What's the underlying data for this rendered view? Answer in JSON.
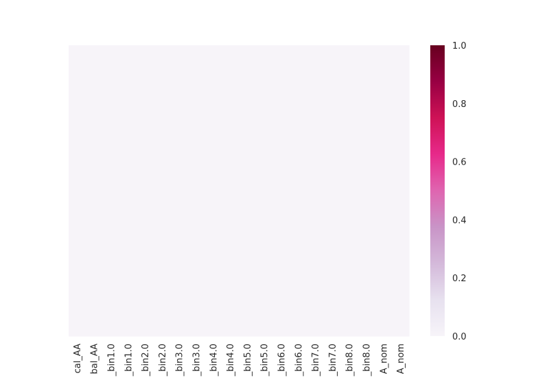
{
  "chart_data": {
    "type": "heatmap",
    "title": "",
    "xlabel": "",
    "ylabel": "",
    "x_tick_labels": [
      "cal_AA",
      "bal_AA",
      "_bin1.0",
      "_bin1.0",
      "_bin2.0",
      "_bin2.0",
      "_bin3.0",
      "_bin3.0",
      "_bin4.0",
      "_bin4.0",
      "_bin5.0",
      "_bin5.0",
      "_bin6.0",
      "_bin6.0",
      "_bin7.0",
      "_bin7.0",
      "_bin8.0",
      "_bin8.0",
      "A_nom",
      "A_nom"
    ],
    "values": [
      [
        0,
        0,
        0,
        0,
        0,
        0,
        0,
        0,
        0,
        0,
        0,
        0,
        0,
        0,
        0,
        0,
        0,
        0,
        0,
        0
      ]
    ],
    "colorbar": {
      "range": [
        0.0,
        1.0
      ],
      "tick_labels": [
        "0.0",
        "0.2",
        "0.4",
        "0.6",
        "0.8",
        "1.0"
      ],
      "tick_values": [
        0.0,
        0.2,
        0.4,
        0.6,
        0.8,
        1.0
      ],
      "colormap": "PuRd",
      "color_stops": [
        "#f7f4f9",
        "#e7e1ef",
        "#d4b9da",
        "#c994c7",
        "#df65b0",
        "#e7298a",
        "#ce1256",
        "#980043",
        "#67001f"
      ]
    },
    "grid": false
  }
}
